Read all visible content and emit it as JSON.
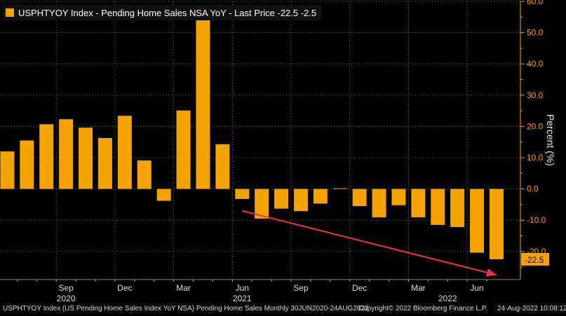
{
  "legend": {
    "title": "USPHTYOY Index - Pending Home Sales NSA YoY - Last Price -22.5  -2.5",
    "color": "#f4a300"
  },
  "footer": {
    "left": "USPHTYOY Index (US Pending Home Sales Index YoY NSA) Pending Home Sales  Monthly 30JUN2020-24AUG2022",
    "middle": "Copyright© 2022 Bloomberg Finance L.P.",
    "right": "24-Aug-2022 10:08:12"
  },
  "chart_data": {
    "type": "bar",
    "title": "USPHTYOY Index - Pending Home Sales NSA YoY - Last Price -22.5  -2.5",
    "ylabel": "Percent (%)",
    "xlabel": "",
    "ylim": [
      -29,
      60
    ],
    "yticks": [
      60,
      50,
      40,
      30,
      20,
      10,
      0,
      -10,
      -20
    ],
    "ytick_labels": [
      "60.0",
      "50.0",
      "40.0",
      "30.0",
      "20.0",
      "10.0",
      "0.0",
      "-10.0",
      "-20.0"
    ],
    "categories": [
      "Jun 2020",
      "Jul 2020",
      "Aug 2020",
      "Sep 2020",
      "Oct 2020",
      "Nov 2020",
      "Dec 2020",
      "Jan 2021",
      "Feb 2021",
      "Mar 2021",
      "Apr 2021",
      "May 2021",
      "Jun 2021",
      "Jul 2021",
      "Aug 2021",
      "Sep 2021",
      "Oct 2021",
      "Nov 2021",
      "Dec 2021",
      "Jan 2022",
      "Feb 2022",
      "Mar 2022",
      "Apr 2022",
      "May 2022",
      "Jun 2022",
      "Jul 2022"
    ],
    "values": [
      12,
      15.5,
      20.7,
      22.3,
      19.6,
      16.3,
      23.4,
      9.1,
      -3.8,
      25.1,
      54,
      14.3,
      -3.2,
      -9.5,
      -6.3,
      -7.1,
      -4.7,
      0.2,
      -5.5,
      -9.1,
      -5.2,
      -9.1,
      -11.5,
      -12.2,
      -20.4,
      -22.5
    ],
    "month_labels": [
      {
        "label": "Sep",
        "index": 3
      },
      {
        "label": "Dec",
        "index": 6
      },
      {
        "label": "Mar",
        "index": 9
      },
      {
        "label": "Jun",
        "index": 12
      },
      {
        "label": "Sep",
        "index": 15
      },
      {
        "label": "Dec",
        "index": 18
      },
      {
        "label": "Mar",
        "index": 21
      },
      {
        "label": "Jun",
        "index": 24
      }
    ],
    "year_labels": [
      {
        "label": "2020",
        "index": 3
      },
      {
        "label": "2021",
        "index": 12
      },
      {
        "label": "2022",
        "index": 22.5
      }
    ],
    "last_value_label": "-22.5",
    "trend_arrow": {
      "from_index": 12,
      "from_value": -7,
      "to_index": 25,
      "to_value": -27.5,
      "color": "#ff2a55"
    },
    "bar_color": "#f4a300",
    "grid": true
  }
}
